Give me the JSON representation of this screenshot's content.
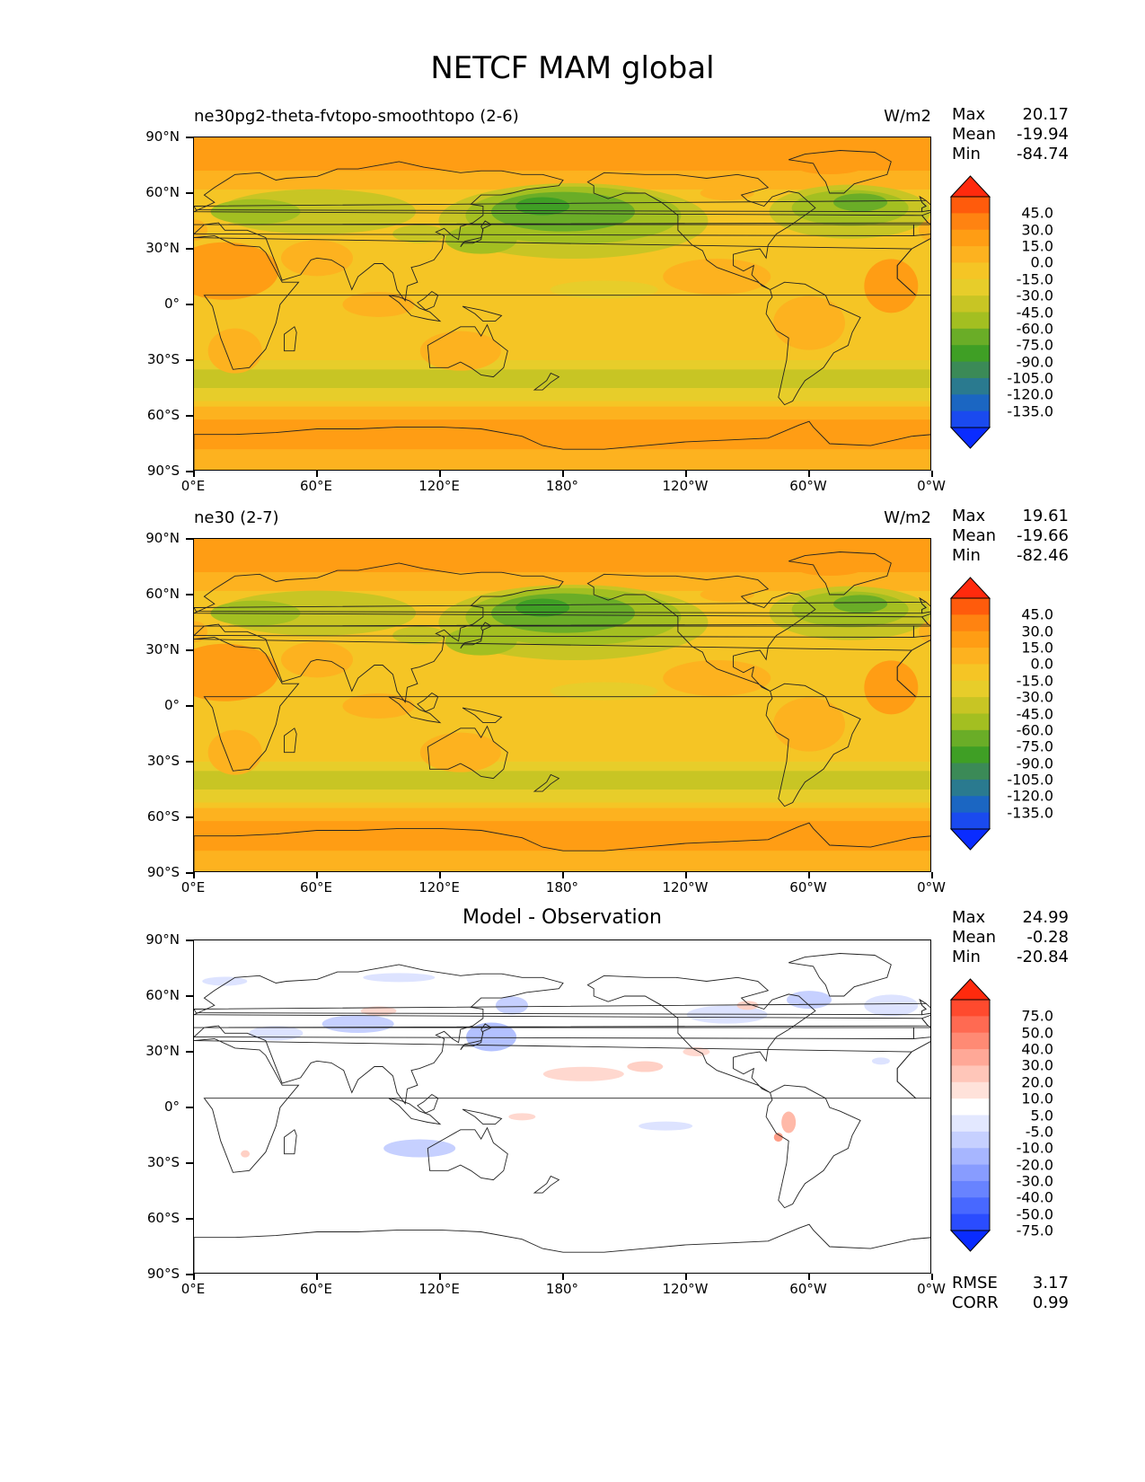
{
  "title": "NETCF MAM global",
  "axes": {
    "y_labels": [
      "90°N",
      "60°N",
      "30°N",
      "0°",
      "30°S",
      "60°S",
      "90°S"
    ],
    "x_labels": [
      "0°E",
      "60°E",
      "120°E",
      "180°",
      "120°W",
      "60°W",
      "0°W"
    ]
  },
  "panels": [
    {
      "title": "ne30pg2-theta-fvtopo-smoothtopo (2-6)",
      "units": "W/m2",
      "stats": [
        {
          "label": "Max",
          "value": "20.17"
        },
        {
          "label": "Mean",
          "value": "-19.94"
        },
        {
          "label": "Min",
          "value": "-84.74"
        }
      ],
      "colorbar_labels": [
        "45.0",
        "30.0",
        "15.0",
        "0.0",
        "-15.0",
        "-30.0",
        "-45.0",
        "-60.0",
        "-75.0",
        "-90.0",
        "-105.0",
        "-120.0",
        "-135.0"
      ],
      "colorbar_colors": [
        "#ff2a0d",
        "#ff5b0c",
        "#ff8311",
        "#ff9d14",
        "#fdb21f",
        "#f5c525",
        "#e7cd2a",
        "#c8c524",
        "#a3bf21",
        "#6aad27",
        "#3f9f25",
        "#3b8a57",
        "#2a7a8f",
        "#1b66c2",
        "#1a4aef",
        "#0a2cff"
      ]
    },
    {
      "title": "ne30 (2-7)",
      "units": "W/m2",
      "stats": [
        {
          "label": "Max",
          "value": "19.61"
        },
        {
          "label": "Mean",
          "value": "-19.66"
        },
        {
          "label": "Min",
          "value": "-82.46"
        }
      ],
      "colorbar_labels": [
        "45.0",
        "30.0",
        "15.0",
        "0.0",
        "-15.0",
        "-30.0",
        "-45.0",
        "-60.0",
        "-75.0",
        "-90.0",
        "-105.0",
        "-120.0",
        "-135.0"
      ],
      "colorbar_colors": [
        "#ff2a0d",
        "#ff5b0c",
        "#ff8311",
        "#ff9d14",
        "#fdb21f",
        "#f5c525",
        "#e7cd2a",
        "#c8c524",
        "#a3bf21",
        "#6aad27",
        "#3f9f25",
        "#3b8a57",
        "#2a7a8f",
        "#1b66c2",
        "#1a4aef",
        "#0a2cff"
      ]
    },
    {
      "title": "Model - Observation",
      "stats": [
        {
          "label": "Max",
          "value": "24.99"
        },
        {
          "label": "Mean",
          "value": "-0.28"
        },
        {
          "label": "Min",
          "value": "-20.84"
        }
      ],
      "colorbar_labels": [
        "75.0",
        "50.0",
        "40.0",
        "30.0",
        "20.0",
        "10.0",
        "5.0",
        "-5.0",
        "-10.0",
        "-20.0",
        "-30.0",
        "-40.0",
        "-50.0",
        "-75.0"
      ],
      "colorbar_colors": [
        "#ff2a0d",
        "#ff4a2e",
        "#ff6a52",
        "#ff8a74",
        "#ffa897",
        "#ffc6b9",
        "#ffe2da",
        "#ffffff",
        "#e3e8ff",
        "#c6d0ff",
        "#a7b6ff",
        "#889cff",
        "#6883ff",
        "#4868ff",
        "#2a4cff",
        "#0a2cff"
      ],
      "bottom_stats": [
        {
          "label": "RMSE",
          "value": "3.17"
        },
        {
          "label": "CORR",
          "value": "0.99"
        }
      ]
    }
  ]
}
